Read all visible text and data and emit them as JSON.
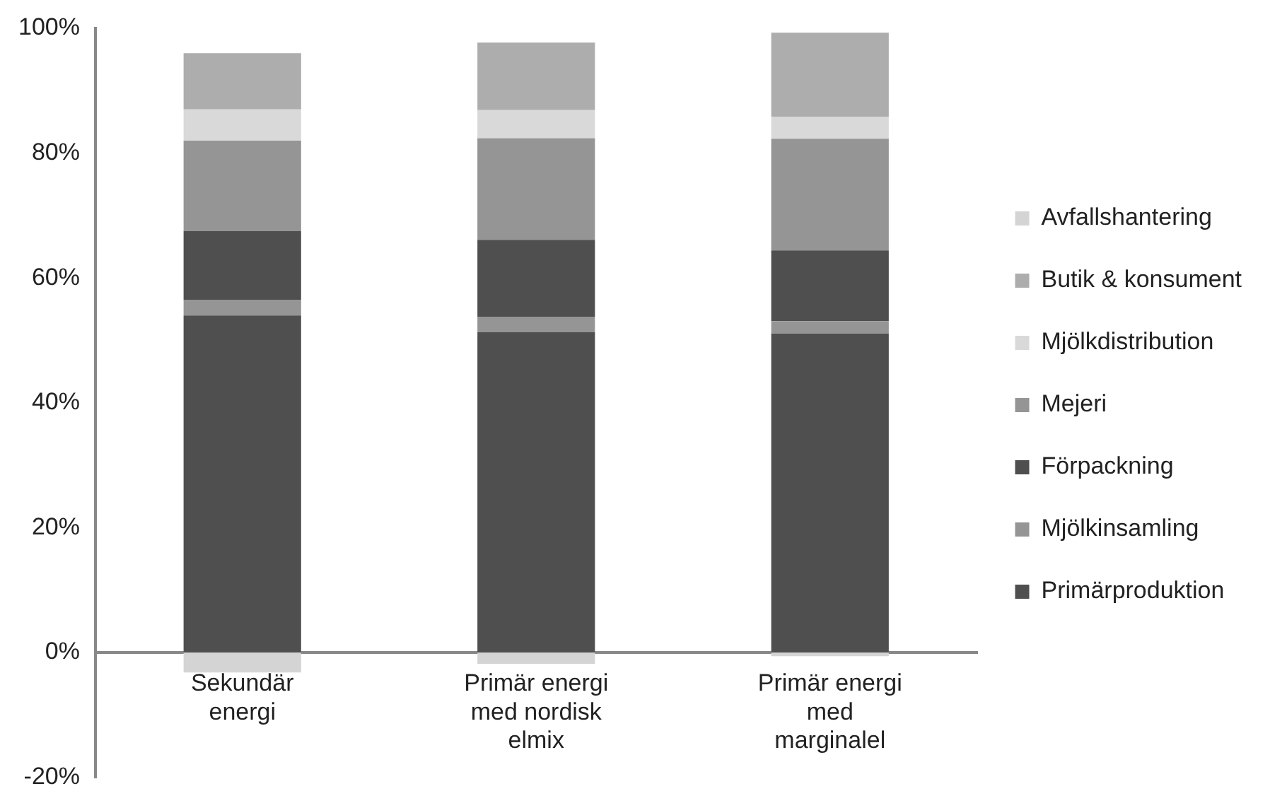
{
  "chart_data": {
    "type": "bar",
    "stacked": true,
    "categories": [
      "Sekundär energi",
      "Primär energi med nordisk elmix",
      "Primär energi med marginalel"
    ],
    "series": [
      {
        "name": "Primärproduktion",
        "color": "#4f4f4f",
        "values": [
          54,
          51.3,
          51.1
        ]
      },
      {
        "name": "Mjölkinsamling",
        "color": "#959595",
        "values": [
          2.5,
          2.5,
          2
        ]
      },
      {
        "name": "Förpackning",
        "color": "#4f4f4f",
        "values": [
          11,
          12.3,
          11.3
        ]
      },
      {
        "name": "Mejeri",
        "color": "#959595",
        "values": [
          14.5,
          16.3,
          17.9
        ]
      },
      {
        "name": "Mjölkdistribution",
        "color": "#d9d9d9",
        "values": [
          5,
          4.5,
          3.5
        ]
      },
      {
        "name": "Butik & konsument",
        "color": "#adadad",
        "values": [
          9,
          10.8,
          13.5
        ]
      },
      {
        "name": "Avfallshantering",
        "color": "#d4d4d4",
        "values": [
          -3.2,
          -1.8,
          -0.6
        ]
      }
    ],
    "ylim": [
      -20,
      100
    ],
    "yticks": [
      {
        "value": -20,
        "label": "-20%"
      },
      {
        "value": 0,
        "label": "0%"
      },
      {
        "value": 20,
        "label": "20%"
      },
      {
        "value": 40,
        "label": "40%"
      },
      {
        "value": 60,
        "label": "60%"
      },
      {
        "value": 80,
        "label": "80%"
      },
      {
        "value": 100,
        "label": "100%"
      }
    ],
    "grid": false,
    "legend": "right"
  }
}
